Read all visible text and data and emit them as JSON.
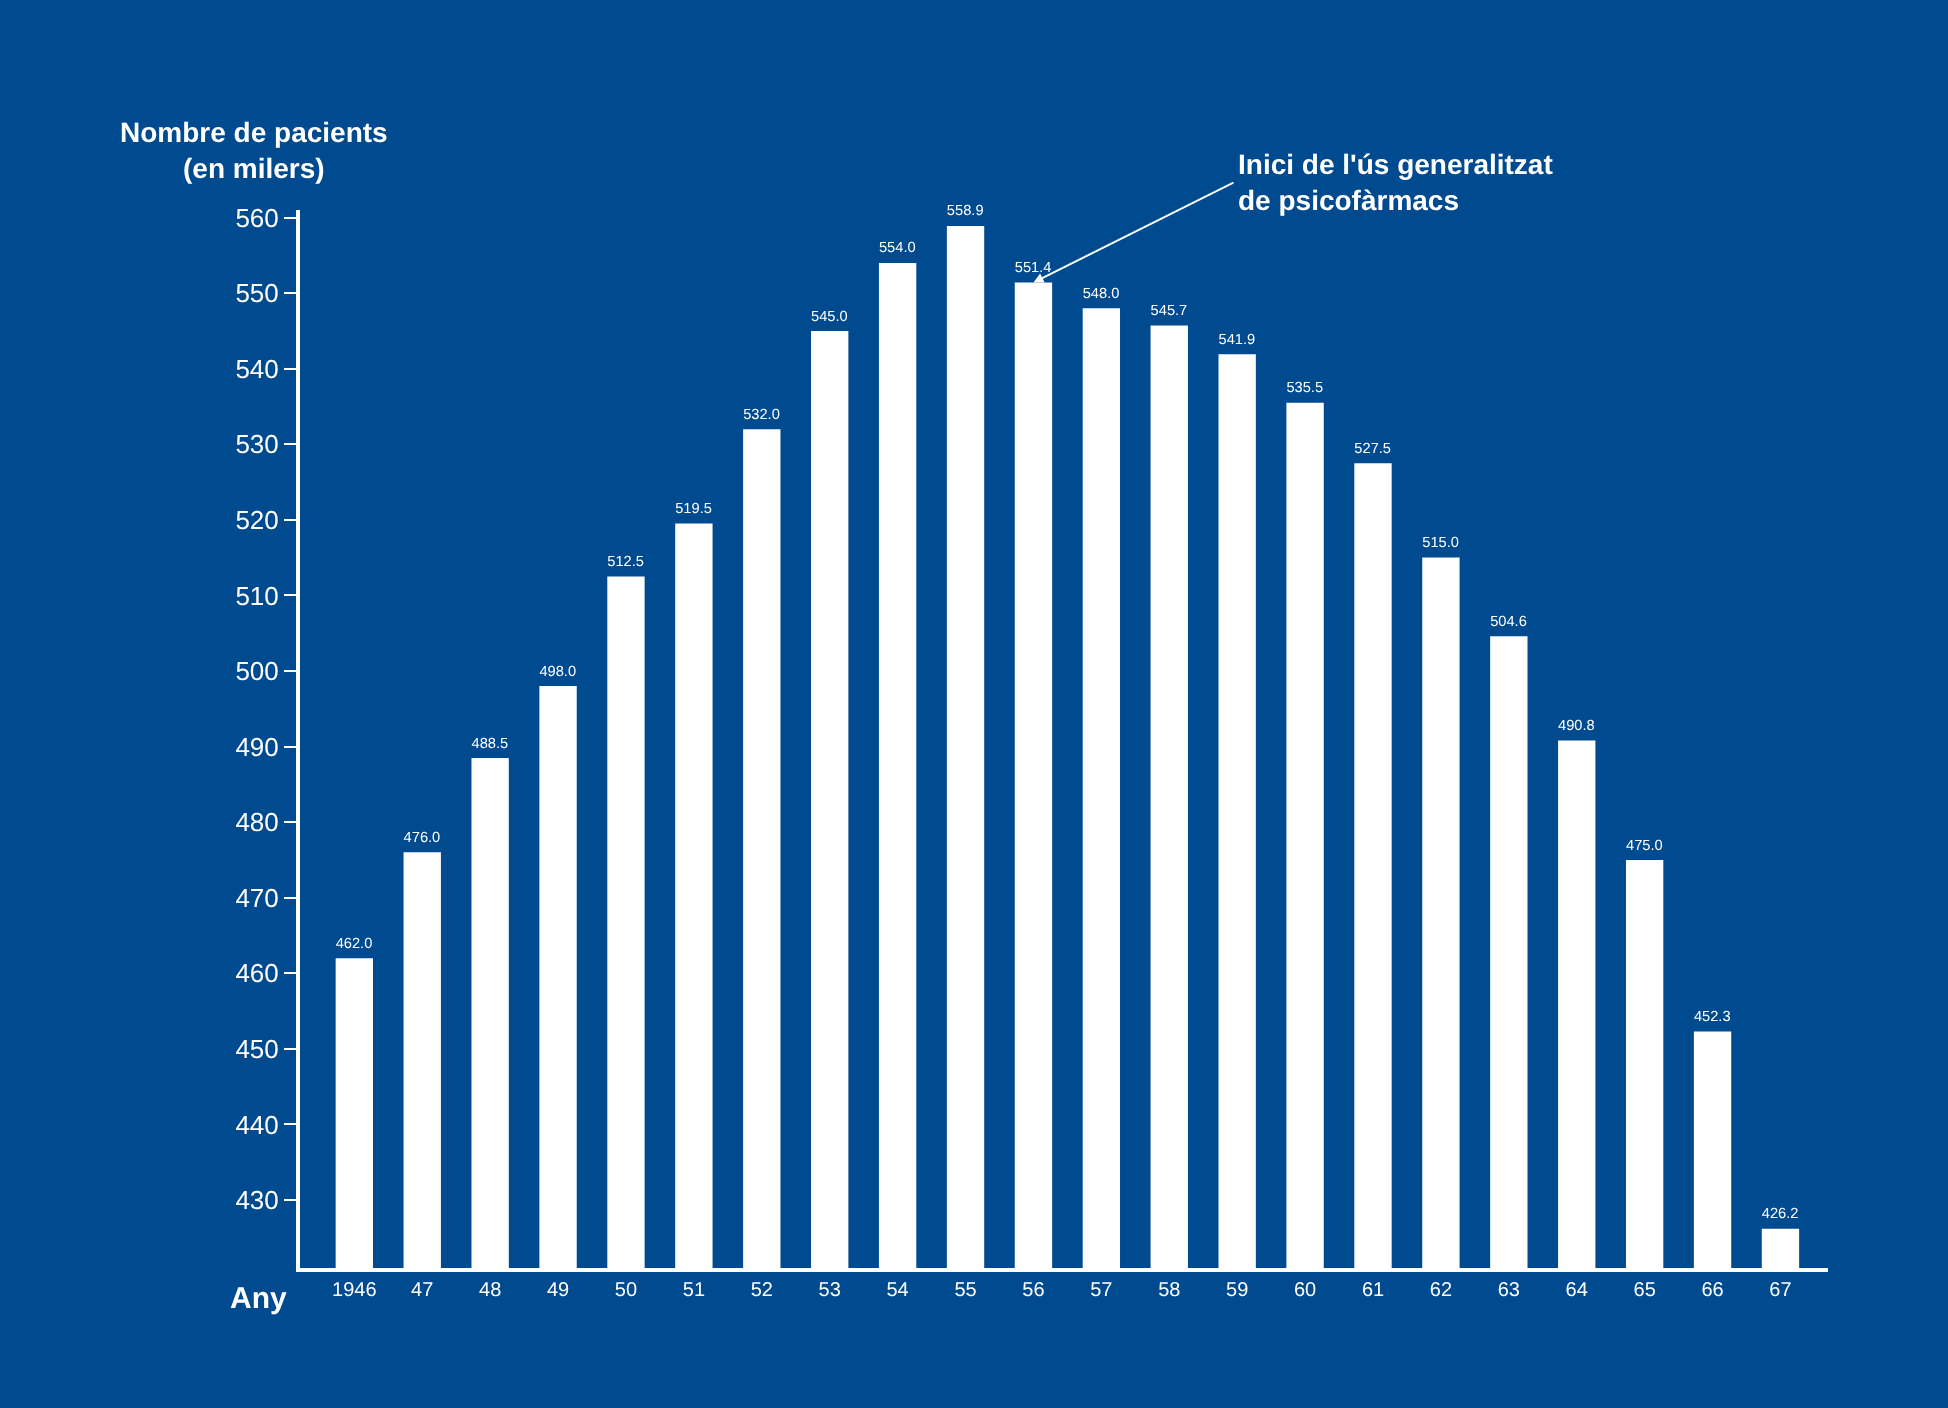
{
  "chart_data": {
    "type": "bar",
    "ylabel": "Nombre de pacients\n(en milers)",
    "xlabel": "Any",
    "categories": [
      "1946",
      "47",
      "48",
      "49",
      "50",
      "51",
      "52",
      "53",
      "54",
      "55",
      "56",
      "57",
      "58",
      "59",
      "60",
      "61",
      "62",
      "63",
      "64",
      "65",
      "66",
      "67"
    ],
    "values": [
      462.0,
      476.0,
      488.5,
      498.0,
      512.5,
      519.5,
      532.0,
      545.0,
      554.0,
      558.9,
      551.4,
      548.0,
      545.7,
      541.9,
      535.5,
      527.5,
      515.0,
      504.6,
      490.8,
      475.0,
      452.3,
      426.2
    ],
    "value_labels": [
      "462.0",
      "476.0",
      "488.5",
      "498.0",
      "512.5",
      "519.5",
      "532.0",
      "545.0",
      "554.0",
      "558.9",
      "551.4",
      "548.0",
      "545.7",
      "541.9",
      "535.5",
      "527.5",
      "515.0",
      "504.6",
      "490.8",
      "475.0",
      "452.3",
      "426.2"
    ],
    "color": "#ffffff",
    "ylim": [
      421,
      561
    ],
    "yticks": [
      430,
      440,
      450,
      460,
      470,
      480,
      490,
      500,
      510,
      520,
      530,
      540,
      550,
      560
    ],
    "grid": false,
    "legend": false,
    "annotations": [
      {
        "text": "Inici de l'ús generalitzat\nde psicofàrmacs",
        "x": "56",
        "y": 551.4
      }
    ]
  }
}
